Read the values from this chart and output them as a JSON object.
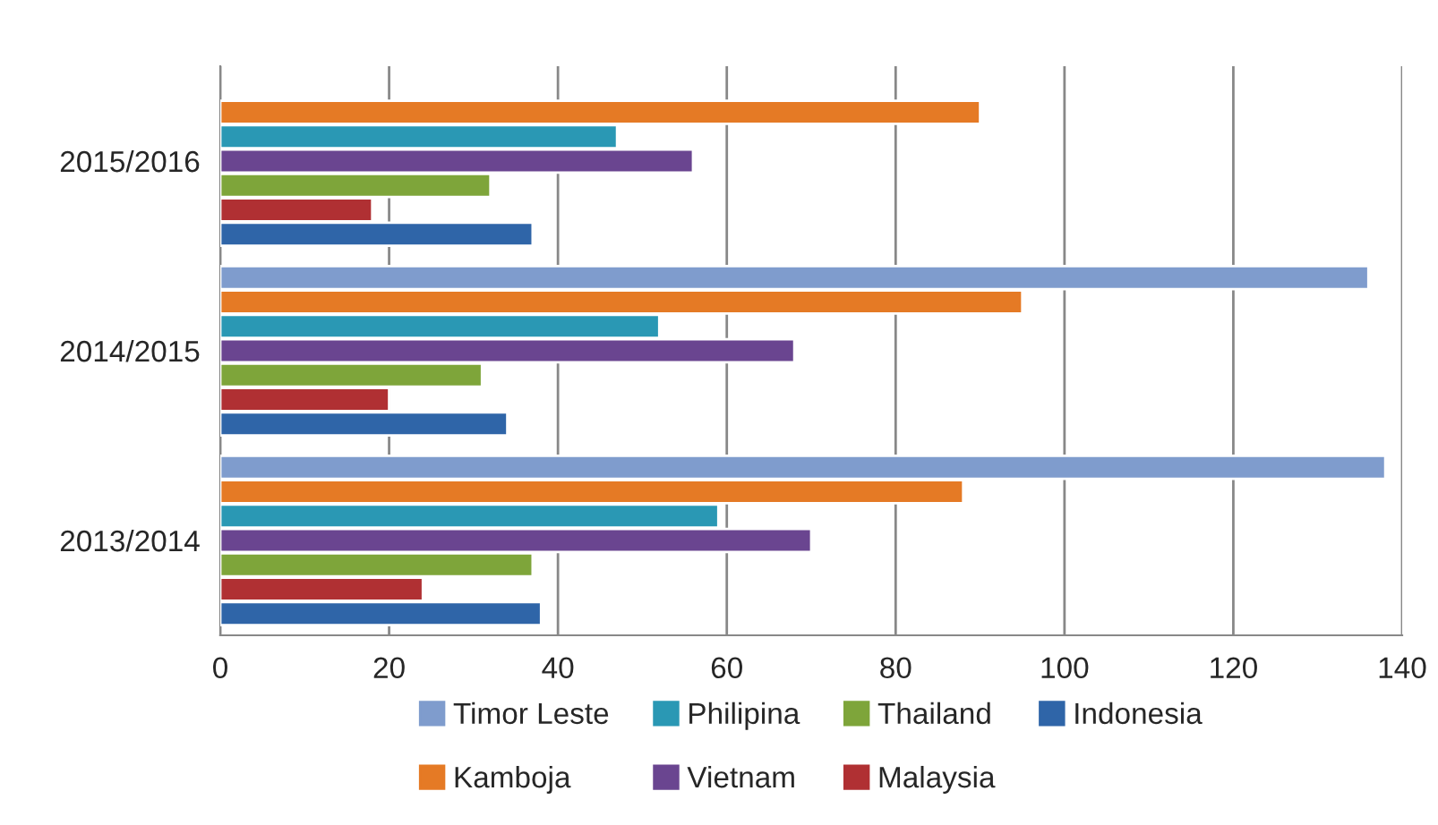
{
  "chart_data": {
    "type": "bar",
    "orientation": "horizontal",
    "categories": [
      "2015/2016",
      "2014/2015",
      "2013/2014"
    ],
    "series": [
      {
        "name": "Timor Leste",
        "color": "#7f9ccd",
        "values": [
          null,
          136,
          138
        ]
      },
      {
        "name": "Kamboja",
        "color": "#e57a25",
        "values": [
          90,
          95,
          88
        ]
      },
      {
        "name": "Philipina",
        "color": "#2a98b4",
        "values": [
          47,
          52,
          59
        ]
      },
      {
        "name": "Vietnam",
        "color": "#6a4590",
        "values": [
          56,
          68,
          70
        ]
      },
      {
        "name": "Thailand",
        "color": "#7ea53a",
        "values": [
          32,
          31,
          37
        ]
      },
      {
        "name": "Malaysia",
        "color": "#b03033",
        "values": [
          18,
          20,
          24
        ]
      },
      {
        "name": "Indonesia",
        "color": "#2f65a8",
        "values": [
          37,
          34,
          38
        ]
      }
    ],
    "xlim": [
      0,
      140
    ],
    "xticks": [
      0,
      20,
      40,
      60,
      80,
      100,
      120,
      140
    ],
    "grid": "x",
    "legend": "bottom"
  }
}
